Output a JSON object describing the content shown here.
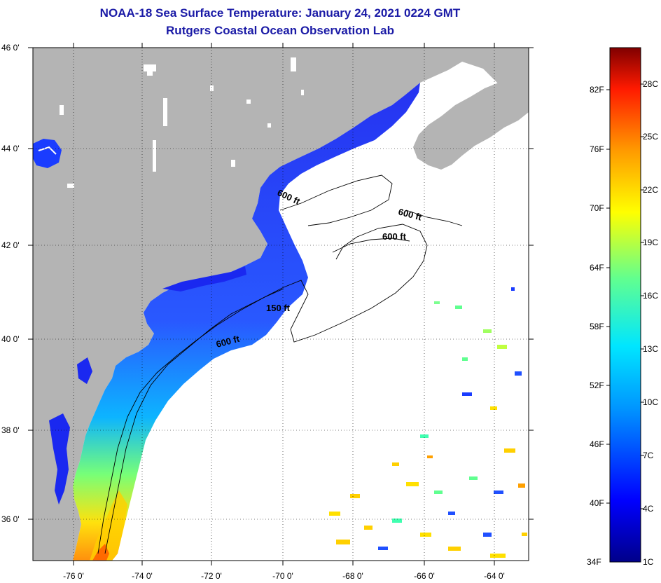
{
  "title": "NOAA-18 Sea Surface Temperature:  January 24, 2021 0224 GMT",
  "subtitle": "Rutgers Coastal Ocean Observation Lab",
  "map": {
    "lat_labels": [
      "46 0'",
      "44 0'",
      "42 0'",
      "40 0'",
      "38 0'",
      "36 0'"
    ],
    "lon_labels": [
      "-76 0'",
      "-74 0'",
      "-72 0'",
      "-70 0'",
      "-68 0'",
      "-66 0'",
      "-64 0'"
    ],
    "contour_labels": [
      "600 ft",
      "600 ft",
      "600 ft",
      "150 ft",
      "600 ft"
    ],
    "colors": {
      "land": "#b4b4b4",
      "ocean_no_data": "#ffffff",
      "coastal_water": "#1a3cff"
    }
  },
  "colorbar": {
    "fahrenheit_labels": [
      "82F",
      "76F",
      "70F",
      "64F",
      "58F",
      "52F",
      "46F",
      "40F",
      "34F"
    ],
    "celsius_labels": [
      "28C",
      "25C",
      "22C",
      "19C",
      "16C",
      "13C",
      "10C",
      "7C",
      "4C",
      "1C"
    ]
  }
}
